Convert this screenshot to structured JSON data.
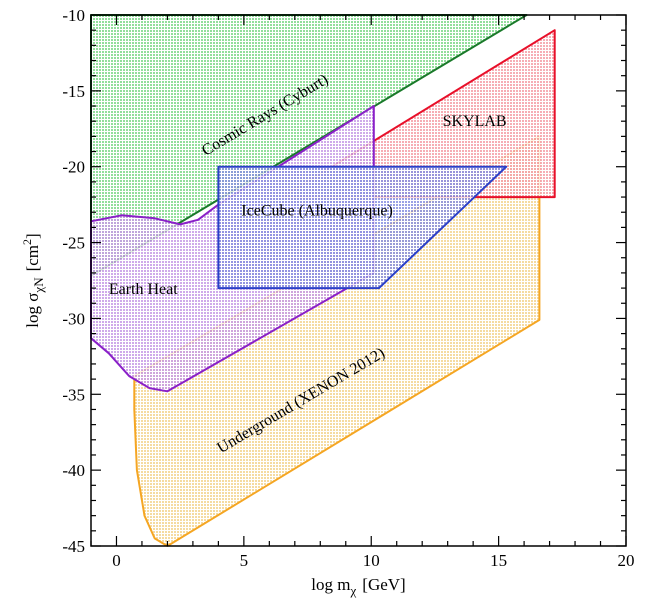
{
  "chart_data": {
    "type": "area",
    "title": "",
    "xlabel": "log m",
    "xlabel_sub": "χ",
    "xlabel_unit": "[GeV]",
    "ylabel": "log σ",
    "ylabel_sub": "χN",
    "ylabel_unit": "[cm",
    "ylabel_unit_sup": "2",
    "ylabel_unit_close": "]",
    "xlim": [
      -1,
      20
    ],
    "ylim": [
      -45,
      -10
    ],
    "xticks": [
      0,
      5,
      10,
      15,
      20
    ],
    "yticks": [
      -10,
      -15,
      -20,
      -25,
      -30,
      -35,
      -40,
      -45
    ],
    "grid": false,
    "series": [
      {
        "name": "Cosmic Rays (Cyburt)",
        "stroke": "#1a7a2a",
        "fill": "#7fd88a",
        "points": [
          [
            -1,
            -27.2
          ],
          [
            16.1,
            -10
          ],
          [
            -1,
            -10
          ]
        ]
      },
      {
        "name": "Underground (XENON 2012)",
        "stroke": "#f5a623",
        "fill": "#f3d590",
        "points": [
          [
            0.7,
            -33.8
          ],
          [
            16.6,
            -18
          ],
          [
            16.6,
            -30.1
          ],
          [
            2.0,
            -45
          ],
          [
            1.5,
            -44.5
          ],
          [
            1.1,
            -43.0
          ],
          [
            0.8,
            -40.0
          ],
          [
            0.7,
            -36.0
          ]
        ]
      },
      {
        "name": "SKYLAB",
        "stroke": "#e8102a",
        "fill": "#f4a0a8",
        "points": [
          [
            6.5,
            -22
          ],
          [
            17.2,
            -11
          ],
          [
            17.2,
            -22
          ]
        ]
      },
      {
        "name": "Earth Heat",
        "stroke": "#8a20c8",
        "fill": "#c79be6",
        "points": [
          [
            -1,
            -23.6
          ],
          [
            0.2,
            -23.2
          ],
          [
            1.5,
            -23.4
          ],
          [
            2.5,
            -23.8
          ],
          [
            3.2,
            -23.5
          ],
          [
            4.0,
            -22.5
          ],
          [
            10.1,
            -16
          ],
          [
            10.1,
            -27
          ],
          [
            2.0,
            -34.8
          ],
          [
            1.3,
            -34.6
          ],
          [
            0.5,
            -33.8
          ],
          [
            -0.3,
            -32.3
          ],
          [
            -1,
            -31.3
          ]
        ]
      },
      {
        "name": "IceCube (Albuquerque)",
        "stroke": "#2a3fc8",
        "fill": "#8890e0",
        "points": [
          [
            4,
            -20
          ],
          [
            15.3,
            -20
          ],
          [
            10.3,
            -28
          ],
          [
            4,
            -28
          ]
        ]
      }
    ],
    "labels": [
      {
        "text": "Cosmic Rays (Cyburt)",
        "x": 3.5,
        "y": -19.3,
        "rotate_along": "Cosmic Rays (Cyburt)"
      },
      {
        "text": "SKYLAB",
        "x": 12.8,
        "y": -17.3
      },
      {
        "text": "IceCube (Albuquerque)",
        "x": 4.9,
        "y": -23.2
      },
      {
        "text": "Earth Heat",
        "x": -0.3,
        "y": -28.4
      },
      {
        "text": "Underground (XENON 2012)",
        "x": 4.1,
        "y": -38.9,
        "rotate_along": "Underground (XENON 2012)"
      }
    ]
  }
}
